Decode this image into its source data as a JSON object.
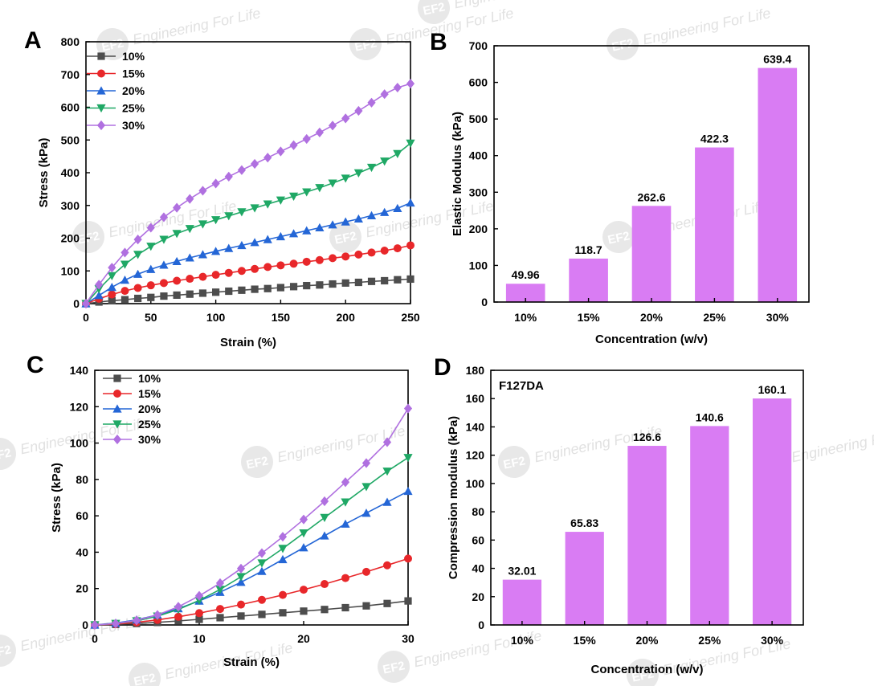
{
  "watermark": "Engineering For Life",
  "watermark_logo": "EF2",
  "chart_data": [
    {
      "id": "A",
      "type": "line",
      "panel_label": "A",
      "xlabel": "Strain (%)",
      "ylabel": "Stress (kPa)",
      "xlim": [
        0,
        250
      ],
      "ylim": [
        0,
        800
      ],
      "xticks": [
        0,
        50,
        100,
        150,
        200,
        250
      ],
      "yticks": [
        0,
        100,
        200,
        300,
        400,
        500,
        600,
        700,
        800
      ],
      "legend_position": "top-left",
      "series": [
        {
          "name": "10%",
          "color": "#4d4d4d",
          "marker": "square",
          "x": [
            0,
            10,
            20,
            30,
            40,
            50,
            60,
            70,
            80,
            90,
            100,
            110,
            120,
            130,
            140,
            150,
            160,
            170,
            180,
            190,
            200,
            210,
            220,
            230,
            240,
            250
          ],
          "y": [
            0,
            5,
            9,
            12,
            16,
            19,
            23,
            26,
            29,
            32,
            35,
            38,
            41,
            44,
            46,
            49,
            52,
            55,
            57,
            60,
            63,
            65,
            68,
            70,
            73,
            75
          ]
        },
        {
          "name": "15%",
          "color": "#e8272a",
          "marker": "circle",
          "x": [
            0,
            10,
            20,
            30,
            40,
            50,
            60,
            70,
            80,
            90,
            100,
            110,
            120,
            130,
            140,
            150,
            160,
            170,
            180,
            190,
            200,
            210,
            220,
            230,
            240,
            250
          ],
          "y": [
            0,
            15,
            28,
            39,
            48,
            56,
            63,
            70,
            76,
            82,
            88,
            94,
            100,
            106,
            112,
            117,
            122,
            128,
            133,
            139,
            144,
            150,
            156,
            162,
            169,
            178
          ]
        },
        {
          "name": "20%",
          "color": "#2466d6",
          "marker": "triangle-up",
          "x": [
            0,
            10,
            20,
            30,
            40,
            50,
            60,
            70,
            80,
            90,
            100,
            110,
            120,
            130,
            140,
            150,
            160,
            170,
            180,
            190,
            200,
            210,
            220,
            230,
            240,
            250
          ],
          "y": [
            0,
            25,
            50,
            72,
            90,
            105,
            118,
            129,
            140,
            150,
            160,
            169,
            178,
            187,
            196,
            205,
            214,
            223,
            232,
            241,
            250,
            259,
            269,
            279,
            291,
            308
          ]
        },
        {
          "name": "25%",
          "color": "#1fa865",
          "marker": "triangle-down",
          "x": [
            0,
            10,
            20,
            30,
            40,
            50,
            60,
            70,
            80,
            90,
            100,
            110,
            120,
            130,
            140,
            150,
            160,
            170,
            180,
            190,
            200,
            210,
            220,
            230,
            240,
            250
          ],
          "y": [
            0,
            45,
            85,
            120,
            150,
            175,
            196,
            214,
            229,
            243,
            256,
            268,
            280,
            292,
            304,
            316,
            328,
            341,
            354,
            368,
            383,
            399,
            416,
            435,
            458,
            490
          ]
        },
        {
          "name": "30%",
          "color": "#b070e0",
          "marker": "diamond",
          "x": [
            0,
            10,
            20,
            30,
            40,
            50,
            60,
            70,
            80,
            90,
            100,
            110,
            120,
            130,
            140,
            150,
            160,
            170,
            180,
            190,
            200,
            210,
            220,
            230,
            240,
            250
          ],
          "y": [
            0,
            58,
            110,
            156,
            196,
            232,
            264,
            293,
            320,
            345,
            367,
            388,
            408,
            427,
            446,
            465,
            484,
            503,
            523,
            544,
            566,
            589,
            614,
            640,
            660,
            672
          ]
        }
      ]
    },
    {
      "id": "B",
      "type": "bar",
      "panel_label": "B",
      "xlabel": "Concentration (w/v)",
      "ylabel": "Elastic Modulus (kPa)",
      "ylim": [
        0,
        700
      ],
      "yticks": [
        0,
        100,
        200,
        300,
        400,
        500,
        600,
        700
      ],
      "categories": [
        "10%",
        "15%",
        "20%",
        "25%",
        "30%"
      ],
      "values": [
        49.96,
        118.7,
        262.6,
        422.3,
        639.4
      ],
      "data_labels": [
        "49.96",
        "118.7",
        "262.6",
        "422.3",
        "639.4"
      ],
      "bar_color": "#d97cf3"
    },
    {
      "id": "C",
      "type": "line",
      "panel_label": "C",
      "xlabel": "Strain (%)",
      "ylabel": "Stress (kPa)",
      "xlim": [
        0,
        30
      ],
      "ylim": [
        0,
        140
      ],
      "xticks": [
        0,
        10,
        20,
        30
      ],
      "yticks": [
        0,
        20,
        40,
        60,
        80,
        100,
        120,
        140
      ],
      "legend_position": "top-left",
      "series": [
        {
          "name": "10%",
          "color": "#4d4d4d",
          "marker": "square",
          "x": [
            0,
            2,
            4,
            6,
            8,
            10,
            12,
            14,
            16,
            18,
            20,
            22,
            24,
            26,
            28,
            30
          ],
          "y": [
            0,
            0.3,
            0.8,
            1.4,
            2.2,
            3.1,
            4.0,
            4.9,
            5.8,
            6.7,
            7.6,
            8.5,
            9.5,
            10.5,
            11.8,
            13.2
          ]
        },
        {
          "name": "15%",
          "color": "#e8272a",
          "marker": "circle",
          "x": [
            0,
            2,
            4,
            6,
            8,
            10,
            12,
            14,
            16,
            18,
            20,
            22,
            24,
            26,
            28,
            30
          ],
          "y": [
            0,
            0.5,
            1.4,
            2.8,
            4.5,
            6.5,
            8.8,
            11.2,
            13.8,
            16.5,
            19.4,
            22.5,
            25.8,
            29.2,
            32.8,
            36.5
          ]
        },
        {
          "name": "20%",
          "color": "#2466d6",
          "marker": "triangle-up",
          "x": [
            0,
            2,
            4,
            6,
            8,
            10,
            12,
            14,
            16,
            18,
            20,
            22,
            24,
            26,
            28,
            30
          ],
          "y": [
            0,
            1.0,
            2.8,
            5.5,
            9.0,
            13.2,
            18.0,
            23.5,
            29.5,
            36.0,
            42.5,
            49.0,
            55.5,
            61.5,
            67.5,
            73.5
          ]
        },
        {
          "name": "25%",
          "color": "#1fa865",
          "marker": "triangle-down",
          "x": [
            0,
            2,
            4,
            6,
            8,
            10,
            12,
            14,
            16,
            18,
            20,
            22,
            24,
            26,
            28,
            30
          ],
          "y": [
            0,
            0.8,
            2.2,
            4.8,
            8.5,
            13.5,
            19.5,
            26.5,
            34.0,
            42.0,
            50.5,
            59.0,
            67.5,
            76.0,
            84.5,
            92.0
          ]
        },
        {
          "name": "30%",
          "color": "#b070e0",
          "marker": "diamond",
          "x": [
            0,
            2,
            4,
            6,
            8,
            10,
            12,
            14,
            16,
            18,
            20,
            22,
            24,
            26,
            28,
            30
          ],
          "y": [
            0,
            0.8,
            2.5,
            5.5,
            10.0,
            16.0,
            23.0,
            31.0,
            39.5,
            48.5,
            58.0,
            68.0,
            78.5,
            89.0,
            100.5,
            119.0
          ]
        }
      ]
    },
    {
      "id": "D",
      "type": "bar",
      "panel_label": "D",
      "title": "F127DA",
      "xlabel": "Concentration (w/v)",
      "ylabel": "Compression modulus (kPa)",
      "ylim": [
        0,
        180
      ],
      "yticks": [
        0,
        20,
        40,
        60,
        80,
        100,
        120,
        140,
        160,
        180
      ],
      "categories": [
        "10%",
        "15%",
        "20%",
        "25%",
        "30%"
      ],
      "values": [
        32.01,
        65.83,
        126.6,
        140.6,
        160.1
      ],
      "data_labels": [
        "32.01",
        "65.83",
        "126.6",
        "140.6",
        "160.1"
      ],
      "bar_color": "#d97cf3"
    }
  ]
}
